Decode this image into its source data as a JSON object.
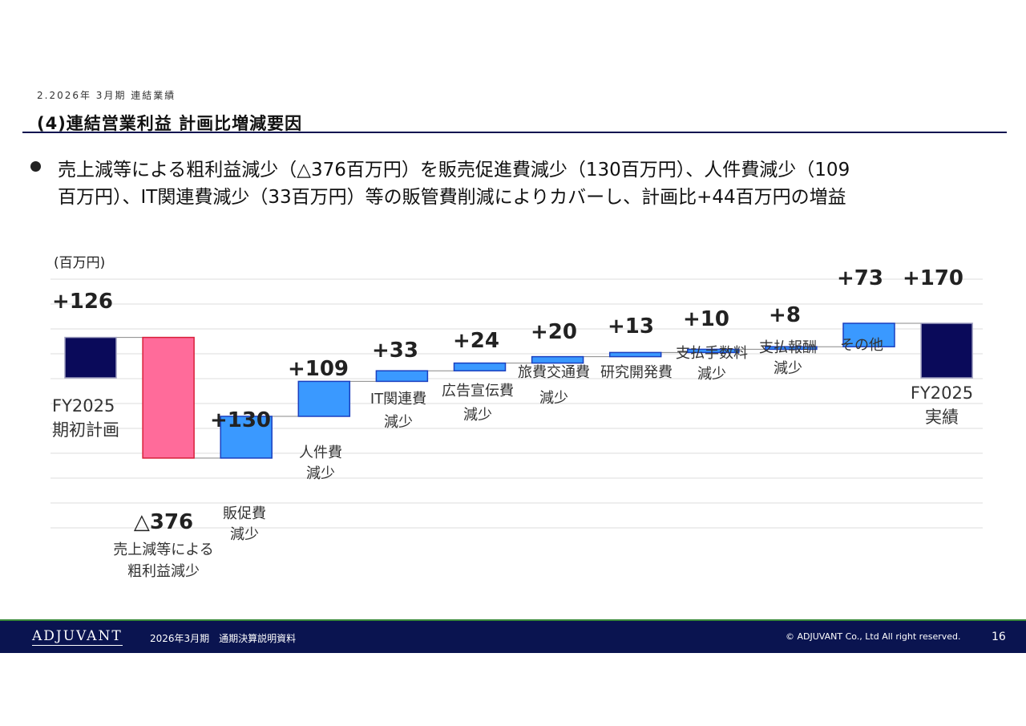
{
  "header": {
    "section": "2.2026年 3月期 連結業績",
    "title": "(4)連結営業利益 計画比増減要因"
  },
  "bullet": {
    "line1": "売上減等による粗利益減少（△376百万円）を販売促進費減少（130百万円）、人件費減少（109",
    "line2": "百万円）、IT関連費減少（33百万円）等の販管費削減によりカバーし、計画比+44百万円の増益"
  },
  "chart_data": {
    "type": "waterfall",
    "unit_label": "(百万円)",
    "categories": [
      [
        "FY2025",
        "期初計画"
      ],
      [
        "売上減等による",
        "粗利益減少"
      ],
      [
        "販促費",
        "減少"
      ],
      [
        "人件費",
        "減少"
      ],
      [
        "IT関連費",
        "減少"
      ],
      [
        "広告宣伝費",
        "減少"
      ],
      [
        "旅費交通費",
        "減少"
      ],
      [
        "研究開発費"
      ],
      [
        "支払手数料",
        "減少"
      ],
      [
        "支払報酬",
        "減少"
      ],
      [
        "その他"
      ],
      [
        "FY2025",
        "実績"
      ]
    ],
    "values": [
      126,
      -376,
      130,
      109,
      33,
      24,
      20,
      13,
      10,
      8,
      73,
      170
    ],
    "value_labels": [
      "+126",
      "△376",
      "+130",
      "+109",
      "+33",
      "+24",
      "+20",
      "+13",
      "+10",
      "+8",
      "+73",
      "+170"
    ],
    "kinds": [
      "total",
      "delta",
      "delta",
      "delta",
      "delta",
      "delta",
      "delta",
      "delta",
      "delta",
      "delta",
      "delta",
      "total"
    ],
    "ylim": [
      -376,
      170
    ],
    "grid": true,
    "colors": {
      "total": "#0a0a5a",
      "negative": "#ff6b9a",
      "positive": "#3a99ff",
      "connector": "#888888"
    }
  },
  "footer": {
    "logo": "ADJUVANT",
    "document": "2026年3月期　通期決算説明資料",
    "copyright": "© ADJUVANT Co., Ltd All right reserved.",
    "page": "16"
  }
}
